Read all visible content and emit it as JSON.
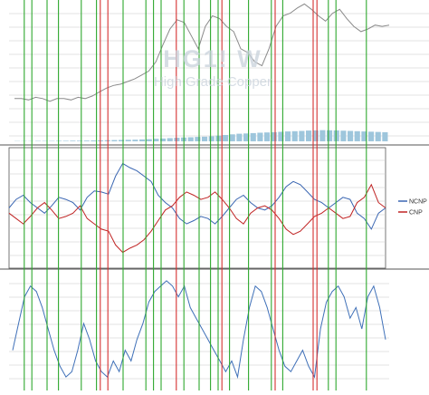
{
  "watermark": {
    "title": "HG1! W",
    "subtitle": "High Grade Copper"
  },
  "colors": {
    "price": "#8a8a8a",
    "volume": "#9ec6dc",
    "ncnp": "#3a66b2",
    "cnp": "#c02424",
    "oscillator": "#3f70b8",
    "green_marker": "#2ea82e",
    "red_marker": "#d63030",
    "grid": "#c8c8c8",
    "panel_border": "#555555"
  },
  "chart_data": [
    {
      "panel": "price",
      "type": "line",
      "series": [
        {
          "name": "",
          "values": [
            0.27,
            0.27,
            0.26,
            0.28,
            0.27,
            0.25,
            0.27,
            0.27,
            0.26,
            0.28,
            0.27,
            0.29,
            0.32,
            0.35,
            0.37,
            0.38,
            0.4,
            0.42,
            0.45,
            0.48,
            0.55,
            0.68,
            0.8,
            0.87,
            0.85,
            0.75,
            0.65,
            0.82,
            0.9,
            0.88,
            0.82,
            0.78,
            0.65,
            0.62,
            0.55,
            0.52,
            0.65,
            0.82,
            0.9,
            0.92,
            0.96,
            0.99,
            0.95,
            0.9,
            0.86,
            0.92,
            0.95,
            0.88,
            0.82,
            0.78,
            0.8,
            0.83,
            0.82,
            0.83
          ]
        }
      ],
      "volume": [
        0.02,
        0.02,
        0.02,
        0.03,
        0.03,
        0.03,
        0.04,
        0.04,
        0.05,
        0.05,
        0.06,
        0.07,
        0.08,
        0.09,
        0.1,
        0.11,
        0.12,
        0.13,
        0.15,
        0.17,
        0.2,
        0.22,
        0.25,
        0.28,
        0.3,
        0.32,
        0.35,
        0.37,
        0.4,
        0.45,
        0.5,
        0.55,
        0.6,
        0.62,
        0.65,
        0.68,
        0.7,
        0.72,
        0.75,
        0.78,
        0.8,
        0.82,
        0.85,
        0.86,
        0.88,
        0.87,
        0.86,
        0.84,
        0.82,
        0.8,
        0.78,
        0.76,
        0.74,
        0.72
      ]
    },
    {
      "panel": "positioning",
      "type": "line",
      "series": [
        {
          "name": "NCNP",
          "values": [
            0.5,
            0.58,
            0.62,
            0.55,
            0.5,
            0.45,
            0.52,
            0.6,
            0.58,
            0.55,
            0.48,
            0.6,
            0.66,
            0.65,
            0.63,
            0.8,
            0.92,
            0.88,
            0.85,
            0.8,
            0.75,
            0.62,
            0.55,
            0.5,
            0.4,
            0.35,
            0.38,
            0.42,
            0.4,
            0.35,
            0.42,
            0.5,
            0.58,
            0.62,
            0.55,
            0.5,
            0.48,
            0.52,
            0.6,
            0.7,
            0.75,
            0.72,
            0.65,
            0.58,
            0.55,
            0.5,
            0.55,
            0.6,
            0.58,
            0.45,
            0.4,
            0.3,
            0.45,
            0.5
          ]
        },
        {
          "name": "CNP",
          "values": [
            0.45,
            0.4,
            0.35,
            0.42,
            0.5,
            0.55,
            0.48,
            0.4,
            0.42,
            0.45,
            0.52,
            0.4,
            0.35,
            0.3,
            0.28,
            0.15,
            0.08,
            0.12,
            0.15,
            0.2,
            0.28,
            0.38,
            0.48,
            0.52,
            0.6,
            0.65,
            0.62,
            0.58,
            0.6,
            0.65,
            0.58,
            0.5,
            0.4,
            0.35,
            0.45,
            0.5,
            0.52,
            0.48,
            0.4,
            0.3,
            0.25,
            0.28,
            0.35,
            0.42,
            0.45,
            0.5,
            0.45,
            0.4,
            0.42,
            0.55,
            0.6,
            0.72,
            0.55,
            0.5
          ]
        }
      ],
      "legend_placement": "right"
    },
    {
      "panel": "oscillator",
      "type": "line",
      "series": [
        {
          "name": "",
          "values": [
            0.3,
            0.55,
            0.8,
            0.9,
            0.85,
            0.7,
            0.5,
            0.3,
            0.15,
            0.05,
            0.1,
            0.3,
            0.55,
            0.4,
            0.2,
            0.1,
            0.05,
            0.2,
            0.1,
            0.3,
            0.2,
            0.4,
            0.55,
            0.75,
            0.85,
            0.9,
            0.95,
            0.9,
            0.8,
            0.9,
            0.7,
            0.6,
            0.5,
            0.4,
            0.3,
            0.2,
            0.1,
            0.2,
            0.05,
            0.4,
            0.7,
            0.9,
            0.85,
            0.7,
            0.5,
            0.3,
            0.15,
            0.1,
            0.2,
            0.3,
            0.15,
            0.05,
            0.5,
            0.75,
            0.85,
            0.9,
            0.8,
            0.6,
            0.7,
            0.5,
            0.8,
            0.9,
            0.7,
            0.4
          ]
        }
      ]
    }
  ],
  "vertical_markers": [
    {
      "color": "green",
      "x": 0.04
    },
    {
      "color": "green",
      "x": 0.06
    },
    {
      "color": "green",
      "x": 0.1
    },
    {
      "color": "green",
      "x": 0.13
    },
    {
      "color": "green",
      "x": 0.19
    },
    {
      "color": "green",
      "x": 0.23
    },
    {
      "color": "red",
      "x": 0.24
    },
    {
      "color": "red",
      "x": 0.26
    },
    {
      "color": "green",
      "x": 0.3
    },
    {
      "color": "green",
      "x": 0.36
    },
    {
      "color": "green",
      "x": 0.38
    },
    {
      "color": "green",
      "x": 0.4
    },
    {
      "color": "red",
      "x": 0.44
    },
    {
      "color": "green",
      "x": 0.46
    },
    {
      "color": "green",
      "x": 0.5
    },
    {
      "color": "green",
      "x": 0.53
    },
    {
      "color": "green",
      "x": 0.55
    },
    {
      "color": "red",
      "x": 0.56
    },
    {
      "color": "green",
      "x": 0.58
    },
    {
      "color": "green",
      "x": 0.63
    },
    {
      "color": "green",
      "x": 0.69
    },
    {
      "color": "red",
      "x": 0.7
    },
    {
      "color": "green",
      "x": 0.72
    },
    {
      "color": "red",
      "x": 0.8
    },
    {
      "color": "red",
      "x": 0.81
    },
    {
      "color": "green",
      "x": 0.84
    },
    {
      "color": "green",
      "x": 0.86
    },
    {
      "color": "green",
      "x": 0.94
    }
  ]
}
